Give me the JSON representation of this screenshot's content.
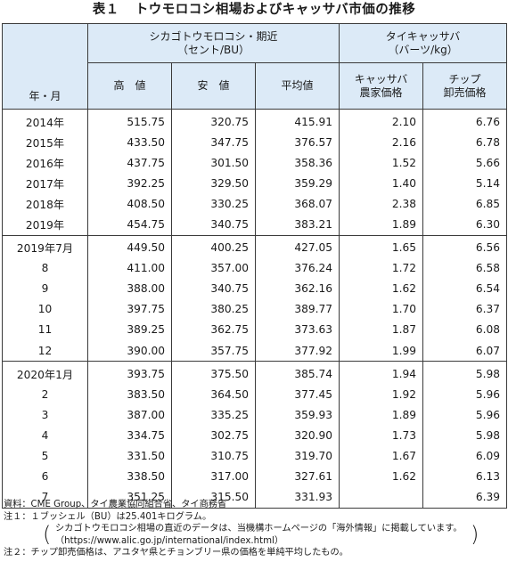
{
  "title": {
    "label": "表１",
    "text": "トウモロコシ相場およびキャッサバ市価の推移"
  },
  "header": {
    "year_month": "年・月",
    "group1_line1": "シカゴトウモロコシ・期近",
    "group1_line2": "（セント/BU）",
    "group2_line1": "タイキャッサバ",
    "group2_line2": "（バーツ/kg）",
    "high": "高　値",
    "low": "安　値",
    "avg": "平均値",
    "farm_line1": "キャッサバ",
    "farm_line2": "農家価格",
    "chip_line1": "チップ",
    "chip_line2": "卸売価格"
  },
  "sections": [
    {
      "rows": [
        {
          "label": "2014年",
          "high": "515.75",
          "low": "320.75",
          "avg": "415.91",
          "farm": "2.10",
          "chip": "6.76"
        },
        {
          "label": "2015年",
          "high": "433.50",
          "low": "347.75",
          "avg": "376.57",
          "farm": "2.16",
          "chip": "6.78"
        },
        {
          "label": "2016年",
          "high": "437.75",
          "low": "301.50",
          "avg": "358.36",
          "farm": "1.52",
          "chip": "5.66"
        },
        {
          "label": "2017年",
          "high": "392.25",
          "low": "329.50",
          "avg": "359.29",
          "farm": "1.40",
          "chip": "5.14"
        },
        {
          "label": "2018年",
          "high": "408.50",
          "low": "330.25",
          "avg": "368.07",
          "farm": "2.38",
          "chip": "6.85"
        },
        {
          "label": "2019年",
          "high": "454.75",
          "low": "340.75",
          "avg": "383.21",
          "farm": "1.89",
          "chip": "6.30"
        }
      ]
    },
    {
      "rows": [
        {
          "label": "2019年7月",
          "high": "449.50",
          "low": "400.25",
          "avg": "427.05",
          "farm": "1.65",
          "chip": "6.56"
        },
        {
          "label": "8",
          "high": "411.00",
          "low": "357.00",
          "avg": "376.24",
          "farm": "1.72",
          "chip": "6.58"
        },
        {
          "label": "9",
          "high": "388.00",
          "low": "340.75",
          "avg": "362.16",
          "farm": "1.62",
          "chip": "6.54"
        },
        {
          "label": "10",
          "high": "397.75",
          "low": "380.25",
          "avg": "389.77",
          "farm": "1.70",
          "chip": "6.37"
        },
        {
          "label": "11",
          "high": "389.25",
          "low": "362.75",
          "avg": "373.63",
          "farm": "1.87",
          "chip": "6.08"
        },
        {
          "label": "12",
          "high": "390.00",
          "low": "357.75",
          "avg": "377.92",
          "farm": "1.99",
          "chip": "6.07"
        }
      ]
    },
    {
      "rows": [
        {
          "label": "2020年1月",
          "high": "393.75",
          "low": "375.50",
          "avg": "385.74",
          "farm": "1.94",
          "chip": "5.98"
        },
        {
          "label": "2",
          "high": "383.50",
          "low": "364.50",
          "avg": "377.45",
          "farm": "1.92",
          "chip": "5.96"
        },
        {
          "label": "3",
          "high": "387.00",
          "low": "335.25",
          "avg": "359.93",
          "farm": "1.89",
          "chip": "5.96"
        },
        {
          "label": "4",
          "high": "334.75",
          "low": "302.75",
          "avg": "320.90",
          "farm": "1.73",
          "chip": "5.98"
        },
        {
          "label": "5",
          "high": "331.50",
          "low": "310.75",
          "avg": "319.70",
          "farm": "1.67",
          "chip": "6.09"
        },
        {
          "label": "6",
          "high": "338.50",
          "low": "317.00",
          "avg": "327.61",
          "farm": "1.62",
          "chip": "6.13"
        },
        {
          "label": "7",
          "high": "351.25",
          "low": "315.50",
          "avg": "331.93",
          "farm": "",
          "chip": "6.39"
        }
      ]
    }
  ],
  "notes": {
    "source": "資料：CME Group、タイ農業協同組合省、タイ商務省",
    "note1": "注１：１ブッシェル（BU）は25.401キログラム。",
    "note1_paren_line1": "シカゴトウモロコシ相場の直近のデータは、当機構ホームページの「海外情報」に掲載しています。",
    "note1_paren_line2": "（https://www.alic.go.jp/international/index.html）",
    "note2": "注２：チップ卸売価格は、アユタヤ県とチョンブリー県の価格を単純平均したもの。"
  },
  "colors": {
    "header_bg": "#dceaf7",
    "rule": "#3a3a3a"
  }
}
